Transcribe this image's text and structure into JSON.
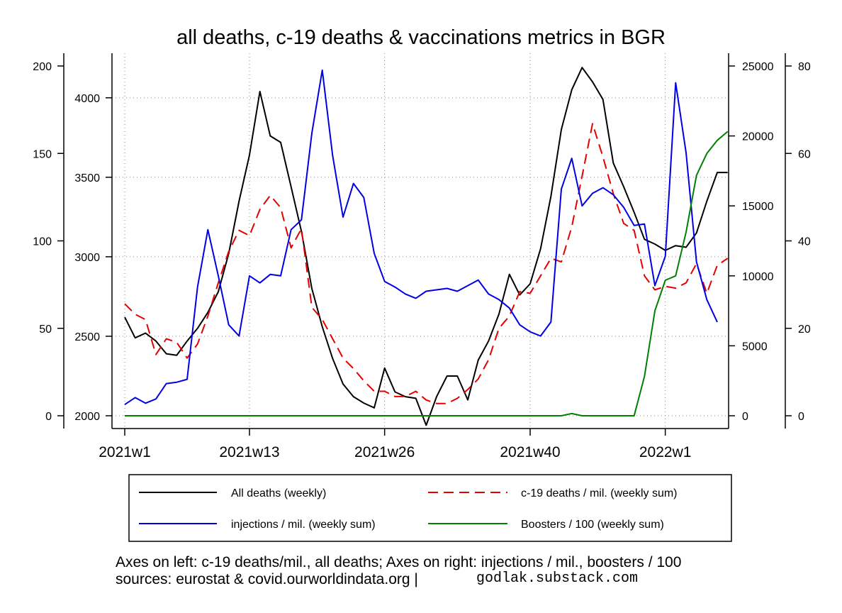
{
  "chart_data": {
    "type": "line",
    "title": "all deaths, c-19 deaths & vaccinations metrics in BGR",
    "x_tick_labels": [
      "2021w1",
      "2021w13",
      "2021w26",
      "2021w40",
      "2022w1"
    ],
    "x_tick_weeks": [
      1,
      13,
      26,
      40,
      53
    ],
    "x_range": [
      1,
      58
    ],
    "axes": {
      "left_outer": {
        "range": [
          0,
          200
        ],
        "ticks": [
          0,
          50,
          100,
          150,
          200
        ]
      },
      "left_inner": {
        "range": [
          2000,
          4200
        ],
        "ticks": [
          2000,
          2500,
          3000,
          3500,
          4000
        ]
      },
      "right_inner": {
        "range": [
          0,
          25000
        ],
        "ticks": [
          0,
          5000,
          10000,
          15000,
          20000,
          25000
        ]
      },
      "right_outer": {
        "range": [
          0,
          80
        ],
        "ticks": [
          0,
          20,
          40,
          60,
          80
        ]
      }
    },
    "series": [
      {
        "name": "All deaths (weekly)",
        "axis": "left_inner",
        "color": "#000000",
        "dash": "",
        "width": 2,
        "values": [
          2620,
          2490,
          2520,
          2470,
          2390,
          2380,
          2470,
          2550,
          2650,
          2780,
          3020,
          3350,
          3640,
          4040,
          3760,
          3720,
          3440,
          3160,
          2800,
          2560,
          2360,
          2200,
          2120,
          2080,
          2050,
          2300,
          2150,
          2120,
          2110,
          1940,
          2120,
          2250,
          2250,
          2100,
          2350,
          2470,
          2640,
          2890,
          2760,
          2830,
          3050,
          3380,
          3800,
          4050,
          4190,
          4100,
          3990,
          3590,
          3440,
          3280,
          3110,
          3080,
          3040,
          3070,
          3060,
          3150,
          3350,
          3530,
          3530
        ]
      },
      {
        "name": "c-19 deaths / mil. (weekly sum)",
        "axis": "left_outer",
        "color": "#e60000",
        "dash": "14,8",
        "width": 2,
        "values": [
          64,
          58,
          55,
          35,
          44,
          42,
          33,
          41,
          57,
          76,
          94,
          106,
          103,
          118,
          126,
          119,
          96,
          107,
          62,
          55,
          44,
          33,
          27,
          20,
          14,
          14,
          11,
          11,
          14,
          9,
          7,
          7,
          10,
          15,
          21,
          32,
          50,
          57,
          71,
          70,
          80,
          90,
          88,
          108,
          137,
          167,
          148,
          127,
          110,
          106,
          80,
          72,
          74,
          73,
          76,
          87,
          70,
          86,
          90
        ]
      },
      {
        "name": "injections / mil. (weekly sum)",
        "axis": "right_inner",
        "color": "#0000e6",
        "dash": "",
        "width": 2,
        "values": [
          800,
          1300,
          900,
          1200,
          2300,
          2400,
          2600,
          9200,
          13300,
          10000,
          6500,
          5700,
          10000,
          9500,
          10100,
          10000,
          13300,
          14000,
          20200,
          24700,
          18600,
          14200,
          16600,
          15600,
          11600,
          9600,
          9200,
          8700,
          8400,
          8900,
          9000,
          9100,
          8900,
          9300,
          9700,
          8700,
          8300,
          7700,
          6500,
          6000,
          5700,
          6700,
          16200,
          18400,
          15000,
          15900,
          16300,
          15800,
          14900,
          13600,
          13700,
          9300,
          11400,
          23800,
          18800,
          11000,
          8300,
          6700
        ]
      },
      {
        "name": "Boosters / 100 (weekly sum)",
        "axis": "right_outer",
        "color": "#008000",
        "dash": "",
        "width": 2,
        "values": [
          0,
          0,
          0,
          0,
          0,
          0,
          0,
          0,
          0,
          0,
          0,
          0,
          0,
          0,
          0,
          0,
          0,
          0,
          0,
          0,
          0,
          0,
          0,
          0,
          0,
          0,
          0,
          0,
          0,
          0,
          0,
          0,
          0,
          0,
          0,
          0,
          0,
          0,
          0,
          0,
          0,
          0,
          0,
          0.5,
          0,
          0,
          0,
          0,
          0,
          0,
          9,
          24,
          31,
          32,
          42,
          55,
          60,
          63,
          65
        ]
      }
    ],
    "legend": [
      {
        "label": "All deaths (weekly)",
        "color": "#000000",
        "dash": ""
      },
      {
        "label": "c-19 deaths / mil. (weekly sum)",
        "color": "#e60000",
        "dash": "14,8"
      },
      {
        "label": "injections / mil. (weekly sum)",
        "color": "#0000e6",
        "dash": ""
      },
      {
        "label": "Boosters / 100 (weekly sum)",
        "color": "#008000",
        "dash": ""
      }
    ],
    "grid": true
  },
  "footer": {
    "line1": "Axes on left: c-19 deaths/mil., all deaths; Axes on right: injections / mil., boosters / 100",
    "line2": "sources: eurostat & covid.ourworldindata.org |",
    "signature": "godlak.substack.com"
  }
}
